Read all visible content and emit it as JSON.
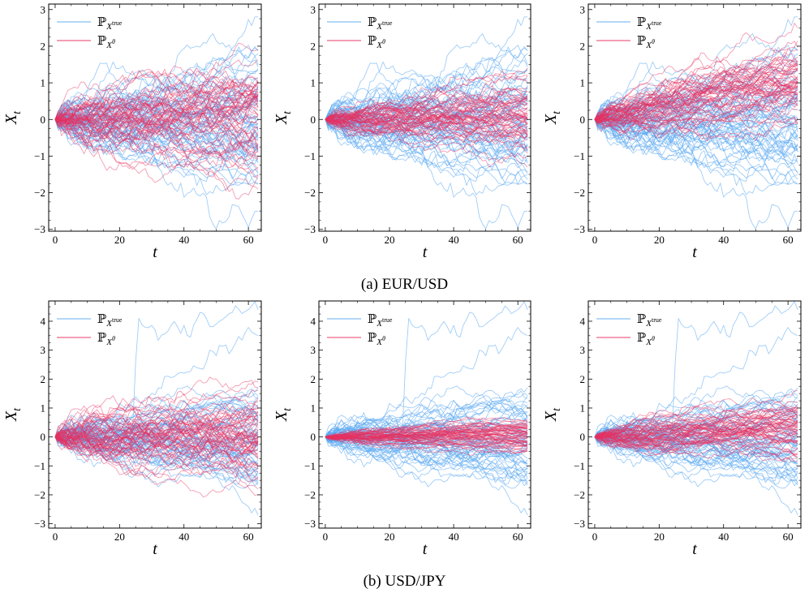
{
  "figure": {
    "captions": [
      "(a) EUR/USD",
      "(b) USD/JPY"
    ]
  },
  "colors": {
    "true_series": "#5aa9f2",
    "model_series": "#e8305f",
    "axis": "#000000"
  },
  "chart_data": [
    {
      "type": "line",
      "group": "EUR/USD",
      "panel": 1,
      "xlabel": "t",
      "ylabel": "X_t",
      "xlim": [
        -2,
        64
      ],
      "ylim": [
        -3.05,
        3.15
      ],
      "xticks": [
        0,
        20,
        40,
        60
      ],
      "yticks": [
        -3,
        -2,
        -1,
        0,
        1,
        2,
        3
      ],
      "grid": false,
      "legend": "top-left",
      "series": [
        {
          "name": "ℙ_{X^true}",
          "color": "#5aa9f2",
          "n_paths": 60,
          "length": 64,
          "mean_end": 0.0,
          "std_end": 1.05,
          "extremes_end": [
            2.8,
            -2.5
          ]
        },
        {
          "name": "ℙ_{X^θ}",
          "color": "#e8305f",
          "n_paths": 60,
          "length": 64,
          "mean_end": 0.1,
          "std_end": 0.85,
          "extremes_end": [
            1.9,
            -1.9
          ]
        }
      ]
    },
    {
      "type": "line",
      "group": "EUR/USD",
      "panel": 2,
      "xlabel": "t",
      "ylabel": "X_t",
      "xlim": [
        -2,
        64
      ],
      "ylim": [
        -3.05,
        3.15
      ],
      "xticks": [
        0,
        20,
        40,
        60
      ],
      "yticks": [
        -3,
        -2,
        -1,
        0,
        1,
        2,
        3
      ],
      "grid": false,
      "legend": "top-left",
      "series": [
        {
          "name": "ℙ_{X^true}",
          "color": "#5aa9f2",
          "n_paths": 60,
          "length": 64,
          "mean_end": 0.0,
          "std_end": 1.05,
          "extremes_end": [
            2.8,
            -2.5
          ]
        },
        {
          "name": "ℙ_{X^θ}",
          "color": "#e8305f",
          "n_paths": 60,
          "length": 64,
          "mean_end": 0.1,
          "std_end": 0.55,
          "extremes_end": [
            1.4,
            -1.3
          ]
        }
      ]
    },
    {
      "type": "line",
      "group": "EUR/USD",
      "panel": 3,
      "xlabel": "t",
      "ylabel": "X_t",
      "xlim": [
        -2,
        64
      ],
      "ylim": [
        -3.05,
        3.15
      ],
      "xticks": [
        0,
        20,
        40,
        60
      ],
      "yticks": [
        -3,
        -2,
        -1,
        0,
        1,
        2,
        3
      ],
      "grid": false,
      "legend": "top-left",
      "series": [
        {
          "name": "ℙ_{X^true}",
          "color": "#5aa9f2",
          "n_paths": 60,
          "length": 64,
          "mean_end": 0.0,
          "std_end": 1.05,
          "extremes_end": [
            2.8,
            -2.5
          ]
        },
        {
          "name": "ℙ_{X^θ}",
          "color": "#e8305f",
          "n_paths": 60,
          "length": 64,
          "mean_end": 1.0,
          "std_end": 0.55,
          "extremes_end": [
            2.5,
            -0.1
          ]
        }
      ]
    },
    {
      "type": "line",
      "group": "USD/JPY",
      "panel": 1,
      "xlabel": "t",
      "ylabel": "X_t",
      "xlim": [
        -2,
        64
      ],
      "ylim": [
        -3.15,
        4.7
      ],
      "xticks": [
        0,
        20,
        40,
        60
      ],
      "yticks": [
        -3,
        -2,
        -1,
        0,
        1,
        2,
        3,
        4
      ],
      "grid": false,
      "legend": "top-left",
      "series": [
        {
          "name": "ℙ_{X^true}",
          "color": "#5aa9f2",
          "n_paths": 60,
          "length": 64,
          "mean_end": -0.1,
          "std_end": 0.95,
          "extremes_end": [
            3.5,
            -2.7
          ]
        },
        {
          "name": "ℙ_{X^θ}",
          "color": "#e8305f",
          "n_paths": 60,
          "length": 64,
          "mean_end": 0.0,
          "std_end": 0.9,
          "extremes_end": [
            1.9,
            -1.8
          ]
        }
      ]
    },
    {
      "type": "line",
      "group": "USD/JPY",
      "panel": 2,
      "xlabel": "t",
      "ylabel": "X_t",
      "xlim": [
        -2,
        64
      ],
      "ylim": [
        -3.15,
        4.7
      ],
      "xticks": [
        0,
        20,
        40,
        60
      ],
      "yticks": [
        -3,
        -2,
        -1,
        0,
        1,
        2,
        3,
        4
      ],
      "grid": false,
      "legend": "top-left",
      "series": [
        {
          "name": "ℙ_{X^true}",
          "color": "#5aa9f2",
          "n_paths": 60,
          "length": 64,
          "mean_end": -0.1,
          "std_end": 0.95,
          "extremes_end": [
            3.5,
            -2.7
          ]
        },
        {
          "name": "ℙ_{X^θ}",
          "color": "#e8305f",
          "n_paths": 60,
          "length": 64,
          "mean_end": 0.05,
          "std_end": 0.3,
          "extremes_end": [
            0.6,
            -0.5
          ]
        }
      ]
    },
    {
      "type": "line",
      "group": "USD/JPY",
      "panel": 3,
      "xlabel": "t",
      "ylabel": "X_t",
      "xlim": [
        -2,
        64
      ],
      "ylim": [
        -3.15,
        4.7
      ],
      "xticks": [
        0,
        20,
        40,
        60
      ],
      "yticks": [
        -3,
        -2,
        -1,
        0,
        1,
        2,
        3,
        4
      ],
      "grid": false,
      "legend": "top-left",
      "series": [
        {
          "name": "ℙ_{X^true}",
          "color": "#5aa9f2",
          "n_paths": 60,
          "length": 64,
          "mean_end": -0.1,
          "std_end": 0.95,
          "extremes_end": [
            3.5,
            -2.7
          ]
        },
        {
          "name": "ℙ_{X^θ}",
          "color": "#e8305f",
          "n_paths": 60,
          "length": 64,
          "mean_end": 0.3,
          "std_end": 0.55,
          "extremes_end": [
            1.6,
            -0.7
          ]
        }
      ]
    }
  ]
}
